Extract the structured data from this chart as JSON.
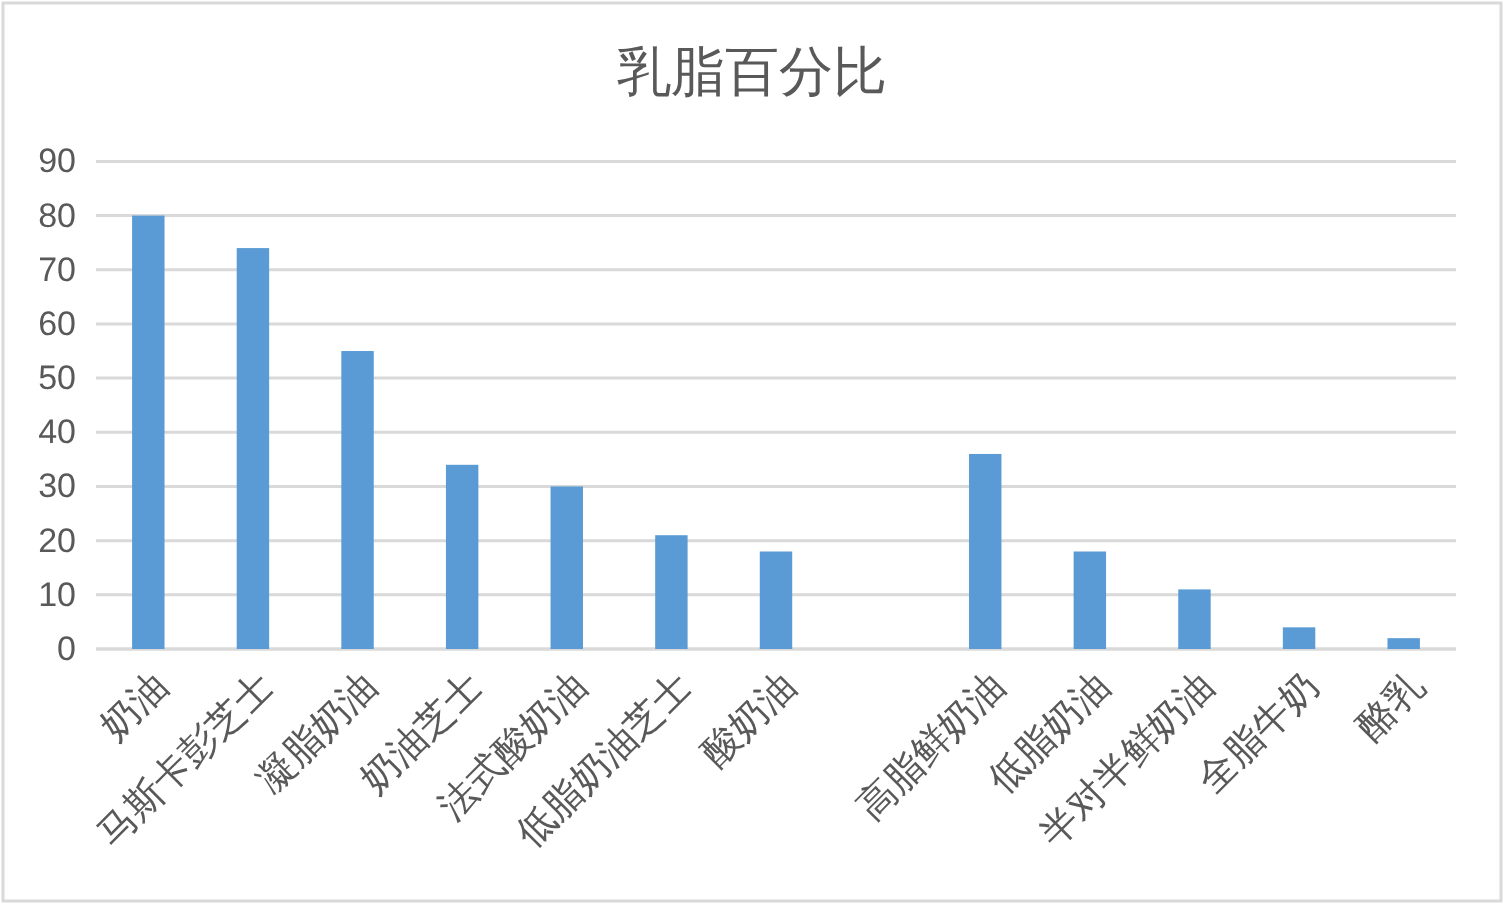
{
  "chart_data": {
    "type": "bar",
    "title": "乳脂百分比",
    "categories": [
      "奶油",
      "马斯卡彭芝士",
      "凝脂奶油",
      "奶油芝士",
      "法式酸奶油",
      "低脂奶油芝士",
      "酸奶油",
      null,
      "高脂鲜奶油",
      "低脂奶油",
      "半对半鲜奶油",
      "全脂牛奶",
      "酪乳"
    ],
    "values": [
      80,
      74,
      55,
      34,
      30,
      21,
      18,
      null,
      36,
      18,
      11,
      4,
      2
    ],
    "color": "#5b9bd5",
    "ylim": [
      0,
      90
    ],
    "yticks": [
      0,
      10,
      20,
      30,
      40,
      50,
      60,
      70,
      80,
      90
    ],
    "grid": "y"
  }
}
